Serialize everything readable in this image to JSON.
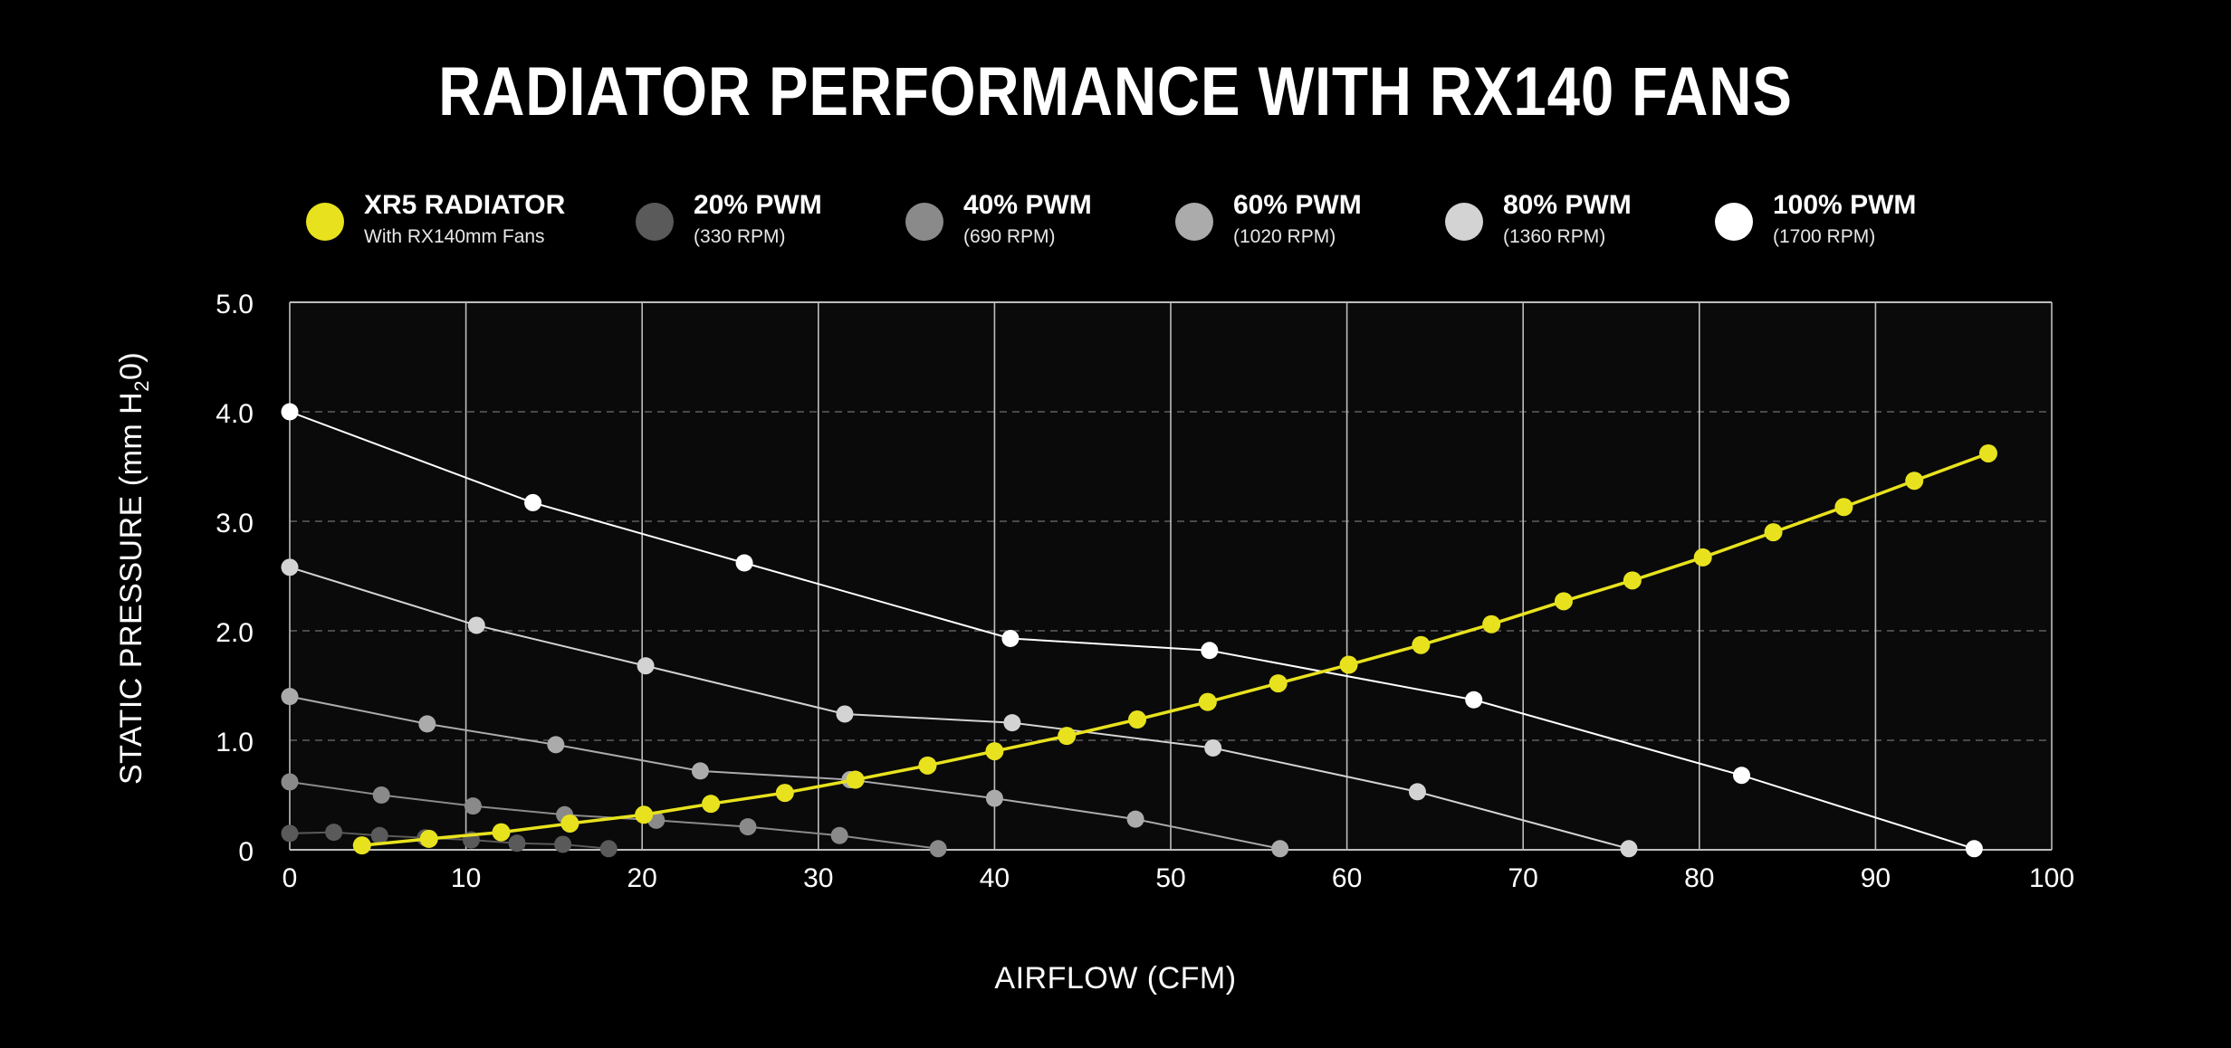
{
  "chart_data": {
    "type": "line",
    "title": "RADIATOR PERFORMANCE WITH RX140 FANS",
    "xlabel": "AIRFLOW (CFM)",
    "ylabel": "STATIC PRESSURE (mm H",
    "ylabel_sub": "2",
    "ylabel_end": "0)",
    "xlim": [
      0,
      100
    ],
    "ylim": [
      0,
      5
    ],
    "x_ticks": [
      0,
      10,
      20,
      30,
      40,
      50,
      60,
      70,
      80,
      90,
      100
    ],
    "y_ticks": [
      0,
      1,
      2,
      3,
      4,
      5
    ],
    "y_tick_labels": [
      "0",
      "1.0",
      "2.0",
      "3.0",
      "4.0",
      "5.0"
    ],
    "grid": true,
    "legend_position": "top",
    "series": [
      {
        "name": "20% PWM",
        "subtitle": "(330 RPM)",
        "color": "#5a5a5a",
        "points": [
          [
            0,
            0.15
          ],
          [
            2.5,
            0.16
          ],
          [
            5.1,
            0.13
          ],
          [
            7.7,
            0.11
          ],
          [
            10.3,
            0.09
          ],
          [
            12.9,
            0.06
          ],
          [
            15.5,
            0.05
          ],
          [
            18.1,
            0.01
          ]
        ]
      },
      {
        "name": "40% PWM",
        "subtitle": "(690 RPM)",
        "color": "#8a8a8a",
        "points": [
          [
            0,
            0.62
          ],
          [
            5.2,
            0.5
          ],
          [
            10.4,
            0.4
          ],
          [
            15.6,
            0.32
          ],
          [
            20.8,
            0.27
          ],
          [
            26.0,
            0.21
          ],
          [
            31.2,
            0.13
          ],
          [
            36.8,
            0.01
          ]
        ]
      },
      {
        "name": "60% PWM",
        "subtitle": "(1020 RPM)",
        "color": "#ababab",
        "points": [
          [
            0,
            1.4
          ],
          [
            7.8,
            1.15
          ],
          [
            15.1,
            0.96
          ],
          [
            23.3,
            0.72
          ],
          [
            31.8,
            0.64
          ],
          [
            40.0,
            0.47
          ],
          [
            48.0,
            0.28
          ],
          [
            56.2,
            0.01
          ]
        ]
      },
      {
        "name": "80% PWM",
        "subtitle": "(1360 RPM)",
        "color": "#d3d3d3",
        "points": [
          [
            0,
            2.58
          ],
          [
            10.6,
            2.05
          ],
          [
            20.2,
            1.68
          ],
          [
            31.5,
            1.24
          ],
          [
            41.0,
            1.16
          ],
          [
            52.4,
            0.93
          ],
          [
            64.0,
            0.53
          ],
          [
            76.0,
            0.01
          ]
        ]
      },
      {
        "name": "100% PWM",
        "subtitle": "(1700 RPM)",
        "color": "#ffffff",
        "points": [
          [
            0,
            4.0
          ],
          [
            13.8,
            3.17
          ],
          [
            25.8,
            2.62
          ],
          [
            40.9,
            1.93
          ],
          [
            52.2,
            1.82
          ],
          [
            67.2,
            1.37
          ],
          [
            82.4,
            0.68
          ],
          [
            95.6,
            0.01
          ]
        ]
      },
      {
        "name": "XR5 RADIATOR",
        "subtitle": "With RX140mm Fans",
        "color": "#e8e21e",
        "front": true,
        "points": [
          [
            4.1,
            0.04
          ],
          [
            7.9,
            0.1
          ],
          [
            12.0,
            0.16
          ],
          [
            15.9,
            0.24
          ],
          [
            20.1,
            0.32
          ],
          [
            23.9,
            0.42
          ],
          [
            28.1,
            0.52
          ],
          [
            32.1,
            0.64
          ],
          [
            36.2,
            0.77
          ],
          [
            40.0,
            0.9
          ],
          [
            44.1,
            1.04
          ],
          [
            48.1,
            1.19
          ],
          [
            52.1,
            1.35
          ],
          [
            56.1,
            1.52
          ],
          [
            60.1,
            1.69
          ],
          [
            64.2,
            1.87
          ],
          [
            68.2,
            2.06
          ],
          [
            72.3,
            2.27
          ],
          [
            76.2,
            2.46
          ],
          [
            80.2,
            2.67
          ],
          [
            84.2,
            2.9
          ],
          [
            88.2,
            3.13
          ],
          [
            92.2,
            3.37
          ],
          [
            96.4,
            3.62
          ]
        ]
      }
    ]
  }
}
